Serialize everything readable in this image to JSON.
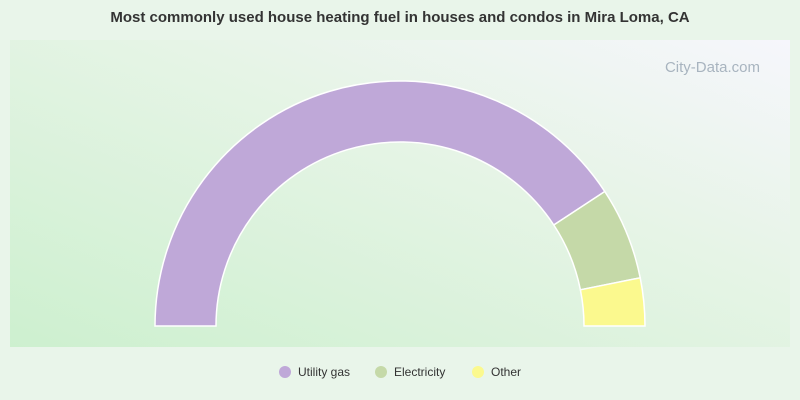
{
  "chart_data": {
    "type": "half-donut",
    "title": "Most commonly used house heating fuel in houses and condos in Mira Loma, CA",
    "watermark": "City-Data.com",
    "categories": [
      "Utility gas",
      "Electricity",
      "Other"
    ],
    "values": [
      81.5,
      12.2,
      6.3
    ],
    "colors": [
      "#bfa8d8",
      "#c5d9a8",
      "#fbf98e"
    ]
  }
}
